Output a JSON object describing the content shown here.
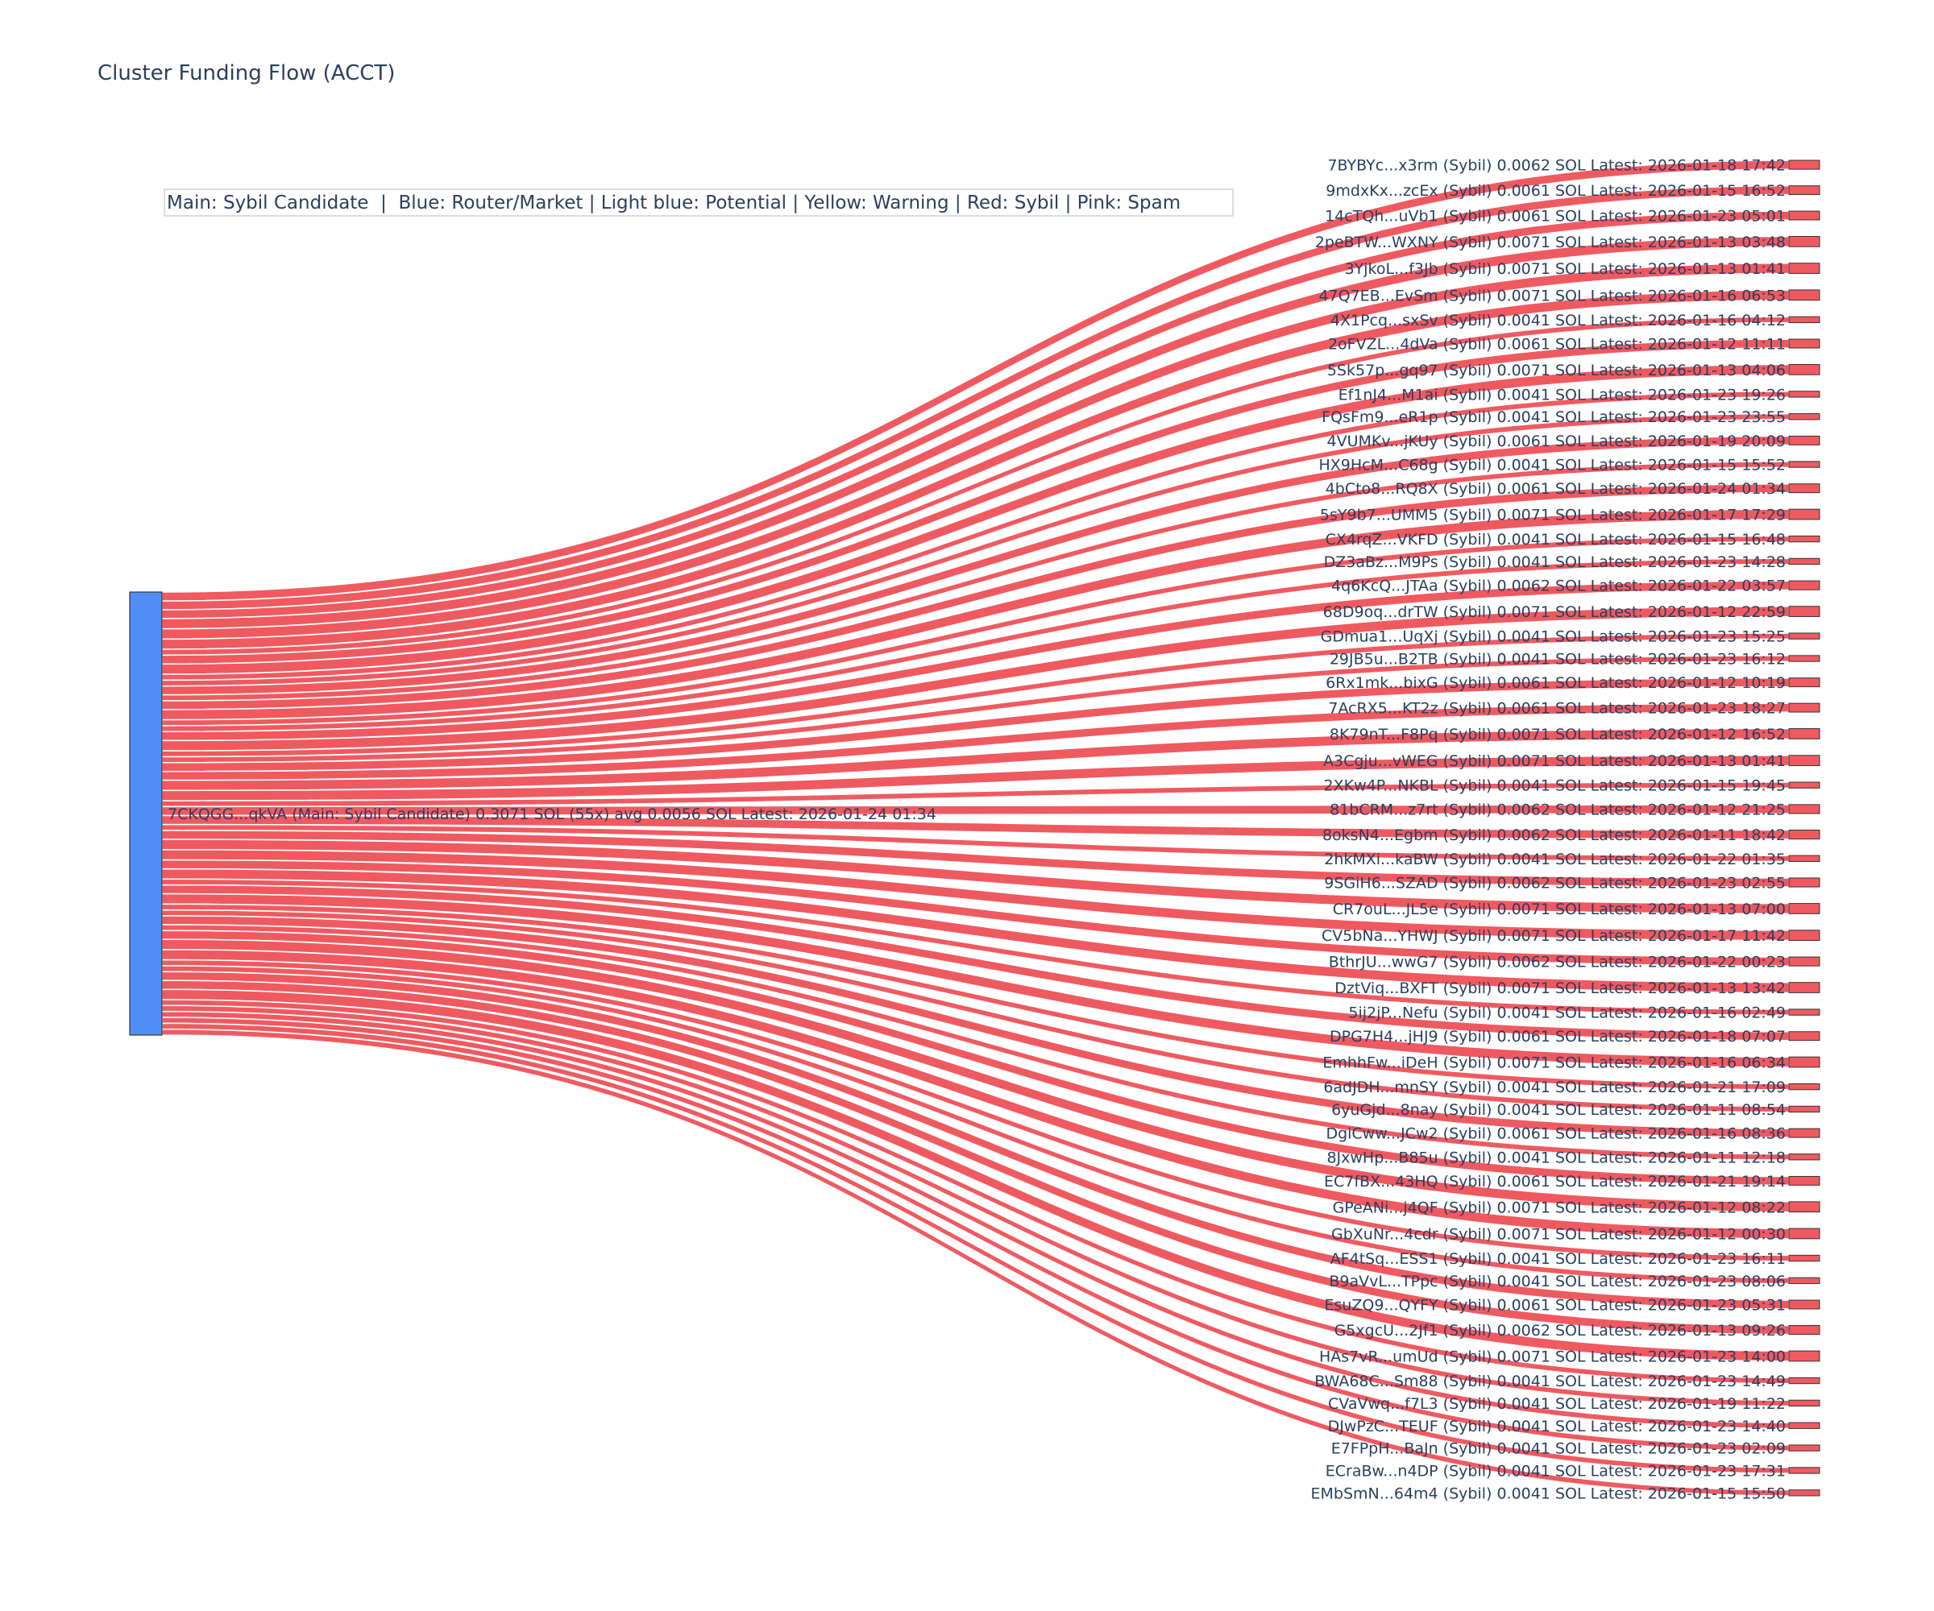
{
  "chart_data": {
    "type": "sankey",
    "title": "Cluster Funding Flow (ACCT)",
    "legend_note": "Main: Sybil Candidate  |  Blue: Router/Market | Light blue: Potential | Yellow: Warning | Red: Sybil | Pink: Spam",
    "colors": {
      "source_node": "#4f8ef7",
      "target_node": "#ef5a61",
      "link": "#ef5a61",
      "node_border": "#333333"
    },
    "source": {
      "label": "7CKQGG...qkVA (Main: Sybil Candidate) 0.3071 SOL (55x) avg 0.0056 SOL Latest: 2026-01-24 01:34",
      "value": 0.3071
    },
    "targets": [
      {
        "label": "7BYBYc...x3rm (Sybil) 0.0062 SOL Latest: 2026-01-18 17:42",
        "value": 0.0062
      },
      {
        "label": "9mdxKx...zcEx (Sybil) 0.0061 SOL Latest: 2026-01-15 16:52",
        "value": 0.0061
      },
      {
        "label": "14cTQh...uVb1 (Sybil) 0.0061 SOL Latest: 2026-01-23 05:01",
        "value": 0.0061
      },
      {
        "label": "2peBTW...WXNY (Sybil) 0.0071 SOL Latest: 2026-01-13 03:48",
        "value": 0.0071
      },
      {
        "label": "3YjkoL...f3Jb (Sybil) 0.0071 SOL Latest: 2026-01-13 01:41",
        "value": 0.0071
      },
      {
        "label": "47Q7EB...EvSm (Sybil) 0.0071 SOL Latest: 2026-01-16 06:53",
        "value": 0.0071
      },
      {
        "label": "4X1Pcq...sxSv (Sybil) 0.0041 SOL Latest: 2026-01-16 04:12",
        "value": 0.0041
      },
      {
        "label": "2oFVZL...4dVa (Sybil) 0.0061 SOL Latest: 2026-01-12 11:11",
        "value": 0.0061
      },
      {
        "label": "5Sk57p...gq97 (Sybil) 0.0071 SOL Latest: 2026-01-13 04:06",
        "value": 0.0071
      },
      {
        "label": "Ef1nJ4...M1ai (Sybil) 0.0041 SOL Latest: 2026-01-23 19:26",
        "value": 0.0041
      },
      {
        "label": "FQsFm9...eR1p (Sybil) 0.0041 SOL Latest: 2026-01-23 23:55",
        "value": 0.0041
      },
      {
        "label": "4VUMKv...jKUy (Sybil) 0.0061 SOL Latest: 2026-01-19 20:09",
        "value": 0.0061
      },
      {
        "label": "HX9HcM...C68g (Sybil) 0.0041 SOL Latest: 2026-01-15 15:52",
        "value": 0.0041
      },
      {
        "label": "4bCto8...RQ8X (Sybil) 0.0061 SOL Latest: 2026-01-24 01:34",
        "value": 0.0061
      },
      {
        "label": "5sY9b7...UMM5 (Sybil) 0.0071 SOL Latest: 2026-01-17 17:29",
        "value": 0.0071
      },
      {
        "label": "CX4rqZ...VKFD (Sybil) 0.0041 SOL Latest: 2026-01-15 16:48",
        "value": 0.0041
      },
      {
        "label": "DZ3aBz...M9Ps (Sybil) 0.0041 SOL Latest: 2026-01-23 14:28",
        "value": 0.0041
      },
      {
        "label": "4q6KcQ...JTAa (Sybil) 0.0062 SOL Latest: 2026-01-22 03:57",
        "value": 0.0062
      },
      {
        "label": "68D9oq...drTW (Sybil) 0.0071 SOL Latest: 2026-01-12 22:59",
        "value": 0.0071
      },
      {
        "label": "GDmua1...UqXj (Sybil) 0.0041 SOL Latest: 2026-01-23 15:25",
        "value": 0.0041
      },
      {
        "label": "29JB5u...B2TB (Sybil) 0.0041 SOL Latest: 2026-01-23 16:12",
        "value": 0.0041
      },
      {
        "label": "6Rx1mk...bixG (Sybil) 0.0061 SOL Latest: 2026-01-12 10:19",
        "value": 0.0061
      },
      {
        "label": "7AcRX5...KT2z (Sybil) 0.0061 SOL Latest: 2026-01-23 18:27",
        "value": 0.0061
      },
      {
        "label": "8K79nT...F8Pq (Sybil) 0.0071 SOL Latest: 2026-01-12 16:52",
        "value": 0.0071
      },
      {
        "label": "A3Cgju...vWEG (Sybil) 0.0071 SOL Latest: 2026-01-13 01:41",
        "value": 0.0071
      },
      {
        "label": "2XKw4P...NKBL (Sybil) 0.0041 SOL Latest: 2026-01-15 19:45",
        "value": 0.0041
      },
      {
        "label": "81bCRM...z7rt (Sybil) 0.0062 SOL Latest: 2026-01-12 21:25",
        "value": 0.0062
      },
      {
        "label": "8oksN4...Egbm (Sybil) 0.0062 SOL Latest: 2026-01-11 18:42",
        "value": 0.0062
      },
      {
        "label": "2hkMXi...kaBW (Sybil) 0.0041 SOL Latest: 2026-01-22 01:35",
        "value": 0.0041
      },
      {
        "label": "9SGiH6...SZAD (Sybil) 0.0062 SOL Latest: 2026-01-23 02:55",
        "value": 0.0062
      },
      {
        "label": "CR7ouL...JL5e (Sybil) 0.0071 SOL Latest: 2026-01-13 07:00",
        "value": 0.0071
      },
      {
        "label": "CV5bNa...YHWJ (Sybil) 0.0071 SOL Latest: 2026-01-17 11:42",
        "value": 0.0071
      },
      {
        "label": "BthrJU...wwG7 (Sybil) 0.0062 SOL Latest: 2026-01-22 00:23",
        "value": 0.0062
      },
      {
        "label": "DztViq...BXFT (Sybil) 0.0071 SOL Latest: 2026-01-13 13:42",
        "value": 0.0071
      },
      {
        "label": "5ij2jP...Nefu (Sybil) 0.0041 SOL Latest: 2026-01-16 02:49",
        "value": 0.0041
      },
      {
        "label": "DPG7H4...jHJ9 (Sybil) 0.0061 SOL Latest: 2026-01-18 07:07",
        "value": 0.0061
      },
      {
        "label": "EmhhFw...iDeH (Sybil) 0.0071 SOL Latest: 2026-01-16 06:34",
        "value": 0.0071
      },
      {
        "label": "6adJDH...mnSY (Sybil) 0.0041 SOL Latest: 2026-01-21 17:09",
        "value": 0.0041
      },
      {
        "label": "6yuGjd...8nay (Sybil) 0.0041 SOL Latest: 2026-01-11 08:54",
        "value": 0.0041
      },
      {
        "label": "DgiCww...JCw2 (Sybil) 0.0061 SOL Latest: 2026-01-16 08:36",
        "value": 0.0061
      },
      {
        "label": "8JxwHp...B85u (Sybil) 0.0041 SOL Latest: 2026-01-11 12:18",
        "value": 0.0041
      },
      {
        "label": "EC7fBX...43HQ (Sybil) 0.0061 SOL Latest: 2026-01-21 19:14",
        "value": 0.0061
      },
      {
        "label": "GPeANi...j4QF (Sybil) 0.0071 SOL Latest: 2026-01-12 08:22",
        "value": 0.0071
      },
      {
        "label": "GbXuNr...4cdr (Sybil) 0.0071 SOL Latest: 2026-01-12 00:30",
        "value": 0.0071
      },
      {
        "label": "AF4tSq...ESS1 (Sybil) 0.0041 SOL Latest: 2026-01-23 16:11",
        "value": 0.0041
      },
      {
        "label": "B9aVvL...TPpc (Sybil) 0.0041 SOL Latest: 2026-01-23 08:06",
        "value": 0.0041
      },
      {
        "label": "EsuZQ9...QYFY (Sybil) 0.0061 SOL Latest: 2026-01-23 05:31",
        "value": 0.0061
      },
      {
        "label": "G5xgcU...2Jf1 (Sybil) 0.0062 SOL Latest: 2026-01-13 09:26",
        "value": 0.0062
      },
      {
        "label": "HAs7vR...umUd (Sybil) 0.0071 SOL Latest: 2026-01-23 14:00",
        "value": 0.0071
      },
      {
        "label": "BWA68C...Sm88 (Sybil) 0.0041 SOL Latest: 2026-01-23 14:49",
        "value": 0.0041
      },
      {
        "label": "CVaVwq...f7L3 (Sybil) 0.0041 SOL Latest: 2026-01-19 11:22",
        "value": 0.0041
      },
      {
        "label": "DJwPzC...TEUF (Sybil) 0.0041 SOL Latest: 2026-01-23 14:40",
        "value": 0.0041
      },
      {
        "label": "E7FPpH...BaJn (Sybil) 0.0041 SOL Latest: 2026-01-23 02:09",
        "value": 0.0041
      },
      {
        "label": "ECraBw...n4DP (Sybil) 0.0041 SOL Latest: 2026-01-23 17:31",
        "value": 0.0041
      },
      {
        "label": "EMbSmN...64m4 (Sybil) 0.0041 SOL Latest: 2026-01-15 15:50",
        "value": 0.0041
      }
    ]
  }
}
